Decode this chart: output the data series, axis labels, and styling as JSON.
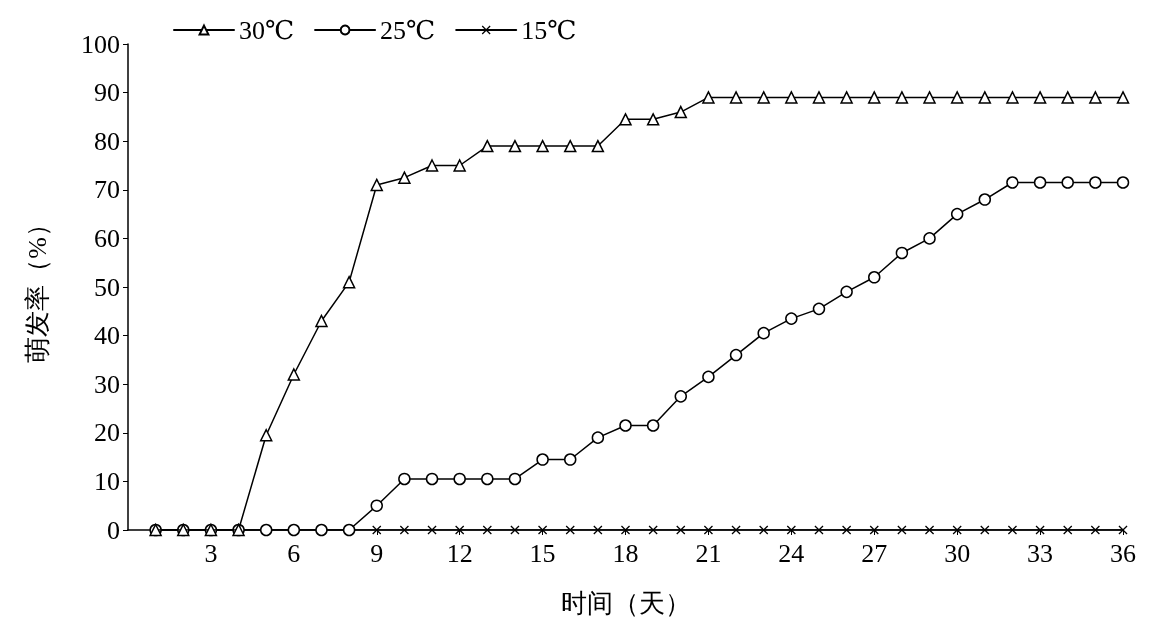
{
  "chart_data": {
    "type": "line",
    "xlabel": "时间（天）",
    "ylabel": "萌发率（%）",
    "x": [
      1,
      2,
      3,
      4,
      5,
      6,
      7,
      8,
      9,
      10,
      11,
      12,
      13,
      14,
      15,
      16,
      17,
      18,
      19,
      20,
      21,
      22,
      23,
      24,
      25,
      26,
      27,
      28,
      29,
      30,
      31,
      32,
      33,
      34,
      35,
      36
    ],
    "series": [
      {
        "name": "30℃",
        "color": "#000000",
        "marker": "triangle",
        "values": [
          0,
          0,
          0,
          0,
          19.5,
          32,
          43,
          51,
          71,
          72.5,
          75,
          75,
          79,
          79,
          79,
          79,
          79,
          84.5,
          84.5,
          86,
          89,
          89,
          89,
          89,
          89,
          89,
          89,
          89,
          89,
          89,
          89,
          89,
          89,
          89,
          89,
          89
        ]
      },
      {
        "name": "25℃",
        "color": "#000000",
        "marker": "circle",
        "values": [
          0,
          0,
          0,
          0,
          0,
          0,
          0,
          0,
          5,
          10.5,
          10.5,
          10.5,
          10.5,
          10.5,
          14.5,
          14.5,
          19,
          21.5,
          21.5,
          27.5,
          31.5,
          36,
          40.5,
          43.5,
          45.5,
          49,
          52,
          57,
          60,
          65,
          68,
          71.5,
          71.5,
          71.5,
          71.5,
          71.5
        ]
      },
      {
        "name": "15℃",
        "color": "#000000",
        "marker": "cross",
        "values": [
          0,
          0,
          0,
          0,
          0,
          0,
          0,
          0,
          0,
          0,
          0,
          0,
          0,
          0,
          0,
          0,
          0,
          0,
          0,
          0,
          0,
          0,
          0,
          0,
          0,
          0,
          0,
          0,
          0,
          0,
          0,
          0,
          0,
          0,
          0,
          0
        ]
      }
    ],
    "xlim": [
      0,
      36
    ],
    "xticks": [
      3,
      6,
      9,
      12,
      15,
      18,
      21,
      24,
      27,
      30,
      33,
      36
    ],
    "ylim": [
      0,
      100
    ],
    "yticks": [
      0,
      10,
      20,
      30,
      40,
      50,
      60,
      70,
      80,
      90,
      100
    ],
    "grid": false,
    "legend": "top",
    "line_style": "solid"
  }
}
